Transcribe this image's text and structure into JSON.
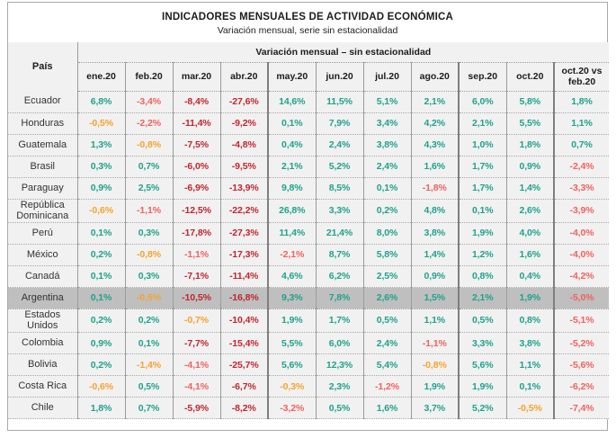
{
  "title": "INDICADORES MENSUALES DE ACTIVIDAD ECONÓMICA",
  "subtitle": "Variación mensual, serie sin estacionalidad",
  "header": {
    "country_col": "País",
    "group_header": "Variación mensual – sin estacionalidad",
    "last_col": "oct.20 vs feb.20"
  },
  "colors": {
    "positive_green": "#1fa28c",
    "mild_negative_orange": "#f5a22d",
    "negative_pink": "#f3605e",
    "strong_negative_red": "#c2242f",
    "highlight_row_gray": "#bfbfbf",
    "table_background": "#f1f1f1"
  },
  "chart_data": {
    "type": "table",
    "title": "INDICADORES MENSUALES DE ACTIVIDAD ECONÓMICA",
    "subtitle": "Variación mensual, serie sin estacionalidad",
    "columns": [
      "País",
      "ene.20",
      "feb.20",
      "mar.20",
      "abr.20",
      "may.20",
      "jun.20",
      "jul.20",
      "ago.20",
      "sep.20",
      "oct.20",
      "oct.20 vs feb.20"
    ],
    "months": [
      "ene.20",
      "feb.20",
      "mar.20",
      "abr.20",
      "may.20",
      "jun.20",
      "jul.20",
      "ago.20",
      "sep.20",
      "oct.20"
    ],
    "color_key": {
      "g": "positive",
      "o": "mild negative",
      "p": "negative",
      "r": "strong negative"
    },
    "rows": [
      {
        "country": "Ecuador",
        "highlight": false,
        "values": [
          "6,8%",
          "-3,4%",
          "-8,4%",
          "-27,6%",
          "14,6%",
          "11,5%",
          "5,1%",
          "2,1%",
          "6,0%",
          "5,8%",
          "1,8%"
        ],
        "colors": [
          "g",
          "p",
          "r",
          "r",
          "g",
          "g",
          "g",
          "g",
          "g",
          "g",
          "g"
        ]
      },
      {
        "country": "Honduras",
        "highlight": false,
        "values": [
          "-0,5%",
          "-2,2%",
          "-11,4%",
          "-9,2%",
          "0,1%",
          "7,9%",
          "3,4%",
          "4,2%",
          "2,1%",
          "5,5%",
          "1,1%"
        ],
        "colors": [
          "o",
          "p",
          "r",
          "r",
          "g",
          "g",
          "g",
          "g",
          "g",
          "g",
          "g"
        ]
      },
      {
        "country": "Guatemala",
        "highlight": false,
        "values": [
          "1,3%",
          "-0,8%",
          "-7,5%",
          "-4,8%",
          "0,4%",
          "2,4%",
          "3,8%",
          "4,3%",
          "1,0%",
          "1,8%",
          "0,7%"
        ],
        "colors": [
          "g",
          "o",
          "r",
          "r",
          "g",
          "g",
          "g",
          "g",
          "g",
          "g",
          "g"
        ]
      },
      {
        "country": "Brasil",
        "highlight": false,
        "values": [
          "0,3%",
          "0,7%",
          "-6,0%",
          "-9,5%",
          "2,1%",
          "5,2%",
          "2,4%",
          "1,6%",
          "1,7%",
          "0,9%",
          "-2,4%"
        ],
        "colors": [
          "g",
          "g",
          "r",
          "r",
          "g",
          "g",
          "g",
          "g",
          "g",
          "g",
          "p"
        ]
      },
      {
        "country": "Paraguay",
        "highlight": false,
        "values": [
          "0,9%",
          "2,5%",
          "-6,9%",
          "-13,9%",
          "9,8%",
          "8,5%",
          "0,1%",
          "-1,8%",
          "1,7%",
          "1,4%",
          "-3,3%"
        ],
        "colors": [
          "g",
          "g",
          "r",
          "r",
          "g",
          "g",
          "g",
          "p",
          "g",
          "g",
          "p"
        ]
      },
      {
        "country": "República Dominicana",
        "highlight": false,
        "values": [
          "-0,6%",
          "-1,1%",
          "-12,5%",
          "-22,2%",
          "26,8%",
          "3,3%",
          "0,2%",
          "4,8%",
          "0,1%",
          "2,6%",
          "-3,9%"
        ],
        "colors": [
          "o",
          "p",
          "r",
          "r",
          "g",
          "g",
          "g",
          "g",
          "g",
          "g",
          "p"
        ]
      },
      {
        "country": "Perú",
        "highlight": false,
        "values": [
          "0,1%",
          "0,3%",
          "-17,8%",
          "-27,3%",
          "11,4%",
          "21,4%",
          "8,0%",
          "3,8%",
          "1,9%",
          "4,0%",
          "-4,0%"
        ],
        "colors": [
          "g",
          "g",
          "r",
          "r",
          "g",
          "g",
          "g",
          "g",
          "g",
          "g",
          "p"
        ]
      },
      {
        "country": "México",
        "highlight": false,
        "values": [
          "0,2%",
          "-0,8%",
          "-1,1%",
          "-17,3%",
          "-2,1%",
          "8,7%",
          "5,8%",
          "1,4%",
          "1,2%",
          "1,6%",
          "-4,0%"
        ],
        "colors": [
          "g",
          "o",
          "p",
          "r",
          "p",
          "g",
          "g",
          "g",
          "g",
          "g",
          "p"
        ]
      },
      {
        "country": "Canadá",
        "highlight": false,
        "values": [
          "0,1%",
          "0,3%",
          "-7,1%",
          "-11,4%",
          "4,6%",
          "6,2%",
          "2,5%",
          "0,9%",
          "0,8%",
          "0,4%",
          "-4,2%"
        ],
        "colors": [
          "g",
          "g",
          "r",
          "r",
          "g",
          "g",
          "g",
          "g",
          "g",
          "g",
          "p"
        ]
      },
      {
        "country": "Argentina",
        "highlight": true,
        "values": [
          "0,1%",
          "-0,5%",
          "-10,5%",
          "-16,8%",
          "9,3%",
          "7,8%",
          "2,6%",
          "1,5%",
          "2,1%",
          "1,9%",
          "-5,0%"
        ],
        "colors": [
          "g",
          "o",
          "r",
          "r",
          "g",
          "g",
          "g",
          "g",
          "g",
          "g",
          "p"
        ]
      },
      {
        "country": "Estados Unidos",
        "highlight": false,
        "values": [
          "0,2%",
          "0,2%",
          "-0,7%",
          "-10,4%",
          "1,9%",
          "1,7%",
          "0,5%",
          "1,1%",
          "0,5%",
          "0,8%",
          "-5,1%"
        ],
        "colors": [
          "g",
          "g",
          "o",
          "r",
          "g",
          "g",
          "g",
          "g",
          "g",
          "g",
          "p"
        ]
      },
      {
        "country": "Colombia",
        "highlight": false,
        "values": [
          "0,9%",
          "0,1%",
          "-7,7%",
          "-15,4%",
          "5,5%",
          "6,0%",
          "2,4%",
          "-1,1%",
          "3,3%",
          "3,8%",
          "-5,2%"
        ],
        "colors": [
          "g",
          "g",
          "r",
          "r",
          "g",
          "g",
          "g",
          "p",
          "g",
          "g",
          "p"
        ]
      },
      {
        "country": "Bolivia",
        "highlight": false,
        "values": [
          "0,2%",
          "-1,4%",
          "-4,1%",
          "-25,7%",
          "5,6%",
          "12,3%",
          "5,4%",
          "-0,8%",
          "5,6%",
          "1,1%",
          "-5,6%"
        ],
        "colors": [
          "g",
          "o",
          "p",
          "r",
          "g",
          "g",
          "g",
          "o",
          "g",
          "g",
          "p"
        ]
      },
      {
        "country": "Costa Rica",
        "highlight": false,
        "values": [
          "-0,6%",
          "0,5%",
          "-4,1%",
          "-6,7%",
          "-0,3%",
          "2,3%",
          "-1,2%",
          "1,9%",
          "1,9%",
          "0,1%",
          "-6,2%"
        ],
        "colors": [
          "o",
          "g",
          "p",
          "r",
          "o",
          "g",
          "p",
          "g",
          "g",
          "g",
          "p"
        ]
      },
      {
        "country": "Chile",
        "highlight": false,
        "values": [
          "1,8%",
          "0,7%",
          "-5,9%",
          "-8,2%",
          "-3,2%",
          "0,5%",
          "1,6%",
          "3,7%",
          "5,2%",
          "-0,5%",
          "-7,4%"
        ],
        "colors": [
          "g",
          "g",
          "r",
          "r",
          "p",
          "g",
          "g",
          "g",
          "g",
          "o",
          "p"
        ]
      }
    ]
  }
}
